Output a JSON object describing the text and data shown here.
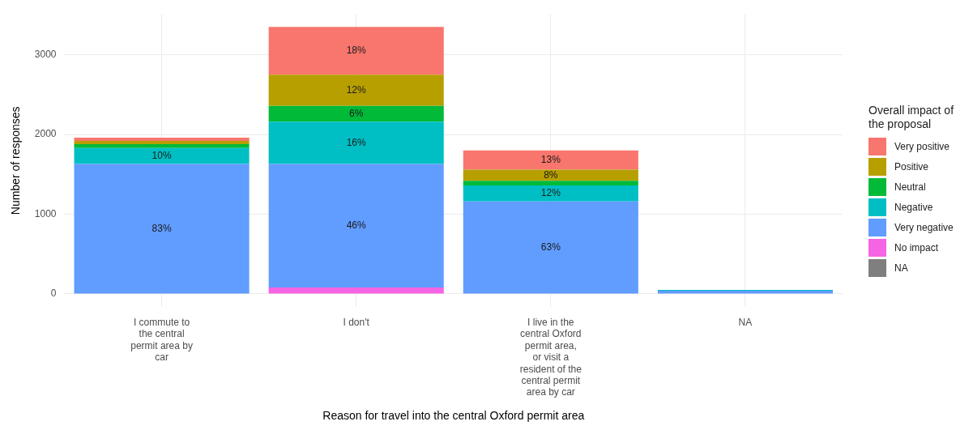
{
  "chart_data": {
    "type": "bar",
    "stacked": true,
    "xlabel": "Reason for travel into the central Oxford permit area",
    "ylabel": "Number of responses",
    "legend_title": "Overall impact of the proposal",
    "legend": "right",
    "grid": true,
    "categories": [
      "I commute to the central permit area by car",
      "I don't",
      "I live in the central Oxford permit area, or visit a resident of the central permit area by car",
      "NA"
    ],
    "ylim": [
      -167,
      3513
    ],
    "yticks": [
      0,
      1000,
      2000,
      3000
    ],
    "series": [
      {
        "name": "NA",
        "color": "#7f7f7f",
        "values": [
          null,
          null,
          null,
          null
        ]
      },
      {
        "name": "No impact",
        "color": "#f564e3",
        "values": [
          null,
          80,
          null,
          null
        ]
      },
      {
        "name": "Very negative",
        "color": "#619cff",
        "values": [
          1630,
          1550,
          1160,
          40
        ]
      },
      {
        "name": "Negative",
        "color": "#00bfc4",
        "values": [
          200,
          530,
          200,
          10
        ]
      },
      {
        "name": "Neutral",
        "color": "#00ba38",
        "values": [
          50,
          200,
          60,
          null
        ]
      },
      {
        "name": "Positive",
        "color": "#b79f00",
        "values": [
          40,
          390,
          140,
          null
        ]
      },
      {
        "name": "Very positive",
        "color": "#f8766d",
        "values": [
          40,
          600,
          240,
          null
        ]
      }
    ],
    "annotations": [
      "83%",
      "10%",
      "46%",
      "16%",
      "6%",
      "12%",
      "18%",
      "63%",
      "12%",
      "8%",
      "13%"
    ]
  }
}
